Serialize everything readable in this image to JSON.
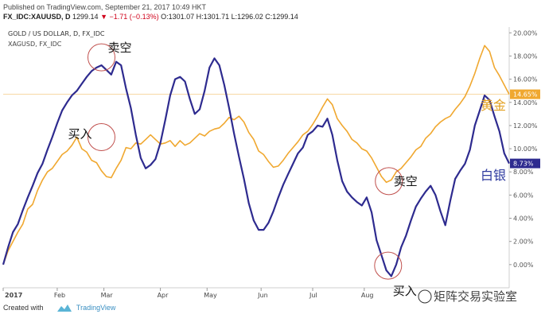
{
  "header": {
    "published": "Published on TradingView.com, September 21, 2017 10:49 HKT",
    "symbol": "FX_IDC:XAUUSD, D",
    "price": "1299.14",
    "change": "−1.71 (−0.13%)",
    "ohlc": "O:1301.07 H:1301.71 L:1296.02 C:1299.14"
  },
  "footer": {
    "created_with": "Created with",
    "brand": "TradingView"
  },
  "watermark": "矩阵交易实验室",
  "chart_data": {
    "type": "line",
    "title": "GOLD / US DOLLAR, D, FX_IDC",
    "subtitle": "XAGUSD, FX_IDC",
    "x_ticks": [
      "2017",
      "Feb",
      "Mar",
      "Apr",
      "May",
      "Jun",
      "Jul",
      "Aug"
    ],
    "y_ticks": [
      "0.00%",
      "2.00%",
      "4.00%",
      "6.00%",
      "8.00%",
      "10.00%",
      "12.00%",
      "14.00%",
      "16.00%",
      "18.00%",
      "20.00%"
    ],
    "ylim": [
      -2.0,
      20.5
    ],
    "x_unit": "trading days since start of 2017",
    "series": [
      {
        "name": "黄金",
        "color": "#f0a830",
        "last_label": "14.65%",
        "points": [
          [
            0,
            0
          ],
          [
            2,
            1.2
          ],
          [
            4,
            2
          ],
          [
            6,
            2.8
          ],
          [
            8,
            3.5
          ],
          [
            10,
            4.8
          ],
          [
            12,
            5.2
          ],
          [
            14,
            6.4
          ],
          [
            16,
            7.3
          ],
          [
            18,
            8
          ],
          [
            20,
            8.3
          ],
          [
            22,
            8.9
          ],
          [
            24,
            9.5
          ],
          [
            26,
            9.8
          ],
          [
            28,
            10.3
          ],
          [
            30,
            11
          ],
          [
            32,
            10
          ],
          [
            34,
            9.7
          ],
          [
            36,
            9
          ],
          [
            38,
            8.8
          ],
          [
            40,
            8.1
          ],
          [
            42,
            7.6
          ],
          [
            44,
            7.5
          ],
          [
            46,
            8.3
          ],
          [
            48,
            9
          ],
          [
            50,
            10.1
          ],
          [
            52,
            10
          ],
          [
            54,
            10.5
          ],
          [
            56,
            10.4
          ],
          [
            58,
            10.8
          ],
          [
            60,
            11.2
          ],
          [
            62,
            10.8
          ],
          [
            64,
            10.4
          ],
          [
            66,
            10.5
          ],
          [
            68,
            10.7
          ],
          [
            70,
            10.2
          ],
          [
            72,
            10.7
          ],
          [
            74,
            10.3
          ],
          [
            76,
            10.5
          ],
          [
            78,
            10.9
          ],
          [
            80,
            11.3
          ],
          [
            82,
            11.1
          ],
          [
            84,
            11.5
          ],
          [
            86,
            11.7
          ],
          [
            88,
            11.8
          ],
          [
            90,
            12.2
          ],
          [
            92,
            12.7
          ],
          [
            94,
            12.5
          ],
          [
            96,
            12.8
          ],
          [
            98,
            12.3
          ],
          [
            100,
            11.4
          ],
          [
            102,
            10.8
          ],
          [
            104,
            9.8
          ],
          [
            106,
            9.5
          ],
          [
            108,
            8.9
          ],
          [
            110,
            8.4
          ],
          [
            112,
            8.5
          ],
          [
            114,
            9
          ],
          [
            116,
            9.6
          ],
          [
            118,
            10.1
          ],
          [
            120,
            10.6
          ],
          [
            122,
            11.2
          ],
          [
            124,
            11.5
          ],
          [
            126,
            12.1
          ],
          [
            128,
            12.8
          ],
          [
            130,
            13.6
          ],
          [
            132,
            14.3
          ],
          [
            134,
            13.8
          ],
          [
            136,
            12.6
          ],
          [
            138,
            12
          ],
          [
            140,
            11.5
          ],
          [
            142,
            10.8
          ],
          [
            144,
            10.5
          ],
          [
            146,
            10
          ],
          [
            148,
            9.8
          ],
          [
            150,
            9.2
          ],
          [
            152,
            8.4
          ],
          [
            154,
            7.6
          ],
          [
            156,
            7.1
          ],
          [
            158,
            7.3
          ],
          [
            160,
            8
          ],
          [
            162,
            8.3
          ],
          [
            164,
            8.8
          ],
          [
            166,
            9.3
          ],
          [
            168,
            9.9
          ],
          [
            170,
            10.2
          ],
          [
            172,
            10.9
          ],
          [
            174,
            11.3
          ],
          [
            176,
            11.9
          ],
          [
            178,
            12.3
          ],
          [
            180,
            12.6
          ],
          [
            182,
            12.8
          ],
          [
            184,
            13.4
          ],
          [
            186,
            13.9
          ],
          [
            188,
            14.5
          ],
          [
            190,
            15.4
          ],
          [
            192,
            16.5
          ],
          [
            194,
            17.8
          ],
          [
            196,
            18.9
          ],
          [
            198,
            18.4
          ],
          [
            200,
            17
          ],
          [
            202,
            16.3
          ],
          [
            204,
            15.5
          ],
          [
            206,
            14.7
          ]
        ]
      },
      {
        "name": "白银",
        "color": "#2e2b8f",
        "last_label": "8.73%",
        "points": [
          [
            0,
            0
          ],
          [
            2,
            1.5
          ],
          [
            4,
            2.8
          ],
          [
            6,
            3.5
          ],
          [
            8,
            4.7
          ],
          [
            10,
            5.8
          ],
          [
            12,
            6.8
          ],
          [
            14,
            7.9
          ],
          [
            16,
            8.7
          ],
          [
            18,
            9.9
          ],
          [
            20,
            11
          ],
          [
            22,
            12.2
          ],
          [
            24,
            13.3
          ],
          [
            26,
            14
          ],
          [
            28,
            14.6
          ],
          [
            30,
            15
          ],
          [
            32,
            15.6
          ],
          [
            34,
            16.2
          ],
          [
            36,
            16.7
          ],
          [
            38,
            17
          ],
          [
            40,
            17.2
          ],
          [
            42,
            16.8
          ],
          [
            44,
            16.4
          ],
          [
            46,
            17.5
          ],
          [
            48,
            17.2
          ],
          [
            50,
            15.2
          ],
          [
            52,
            13.5
          ],
          [
            54,
            11.2
          ],
          [
            56,
            9.2
          ],
          [
            58,
            8.3
          ],
          [
            60,
            8.6
          ],
          [
            62,
            9.1
          ],
          [
            64,
            10.5
          ],
          [
            66,
            12.5
          ],
          [
            68,
            14.6
          ],
          [
            70,
            16
          ],
          [
            72,
            16.2
          ],
          [
            74,
            15.8
          ],
          [
            76,
            14.3
          ],
          [
            78,
            13
          ],
          [
            80,
            13.4
          ],
          [
            82,
            15
          ],
          [
            84,
            17
          ],
          [
            86,
            17.8
          ],
          [
            88,
            17.2
          ],
          [
            90,
            15.5
          ],
          [
            92,
            13.5
          ],
          [
            94,
            11.3
          ],
          [
            96,
            9.3
          ],
          [
            98,
            7.4
          ],
          [
            100,
            5.3
          ],
          [
            102,
            3.8
          ],
          [
            104,
            3
          ],
          [
            106,
            3
          ],
          [
            108,
            3.6
          ],
          [
            110,
            4.6
          ],
          [
            112,
            5.8
          ],
          [
            114,
            6.9
          ],
          [
            116,
            7.8
          ],
          [
            118,
            8.7
          ],
          [
            120,
            9.6
          ],
          [
            122,
            10.1
          ],
          [
            124,
            11.2
          ],
          [
            126,
            11.5
          ],
          [
            128,
            12
          ],
          [
            130,
            11.9
          ],
          [
            132,
            12.6
          ],
          [
            134,
            11.2
          ],
          [
            136,
            9
          ],
          [
            138,
            7.2
          ],
          [
            140,
            6.3
          ],
          [
            142,
            5.8
          ],
          [
            144,
            5.4
          ],
          [
            146,
            5.1
          ],
          [
            148,
            5.8
          ],
          [
            150,
            4.5
          ],
          [
            152,
            2.1
          ],
          [
            154,
            0.8
          ],
          [
            156,
            -0.5
          ],
          [
            158,
            -1
          ],
          [
            160,
            0
          ],
          [
            162,
            1.5
          ],
          [
            164,
            2.5
          ],
          [
            166,
            3.8
          ],
          [
            168,
            5
          ],
          [
            170,
            5.7
          ],
          [
            172,
            6.3
          ],
          [
            174,
            6.8
          ],
          [
            176,
            6
          ],
          [
            178,
            4.6
          ],
          [
            180,
            3.4
          ],
          [
            182,
            5.5
          ],
          [
            184,
            7.4
          ],
          [
            186,
            8.1
          ],
          [
            188,
            8.7
          ],
          [
            190,
            9.9
          ],
          [
            192,
            12
          ],
          [
            194,
            13.3
          ],
          [
            196,
            14.6
          ],
          [
            198,
            14.2
          ],
          [
            200,
            12.8
          ],
          [
            202,
            11.5
          ],
          [
            204,
            9.6
          ],
          [
            206,
            8.73
          ]
        ]
      }
    ],
    "annotations": [
      {
        "text": "卖空",
        "x": 40,
        "y": 17.2
      },
      {
        "text": "买入",
        "x": 40,
        "y": 11
      },
      {
        "text": "卖空",
        "x": 157,
        "y": 7.2
      },
      {
        "text": "买入",
        "x": 158,
        "y": -0.5
      },
      {
        "text": "黄金",
        "series": 0
      },
      {
        "text": "白银",
        "series": 1
      }
    ]
  }
}
